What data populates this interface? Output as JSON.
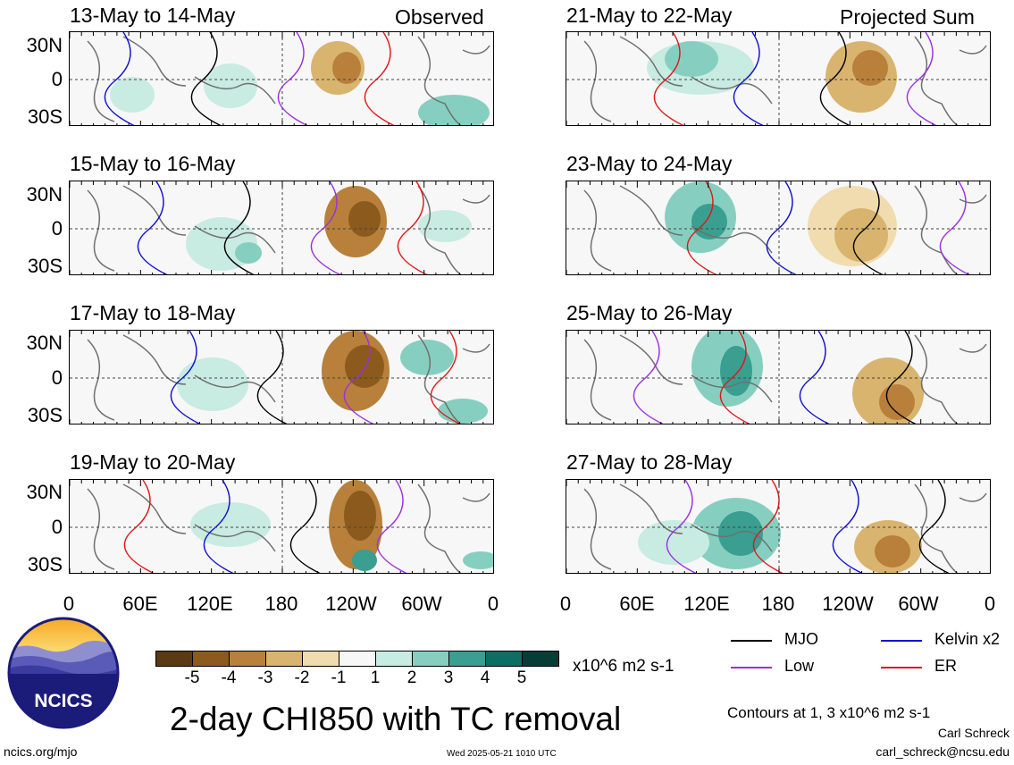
{
  "panels_left": [
    {
      "date": "13-May to 14-May",
      "tag": "Observed"
    },
    {
      "date": "15-May to 16-May",
      "tag": ""
    },
    {
      "date": "17-May to 18-May",
      "tag": ""
    },
    {
      "date": "19-May to 20-May",
      "tag": ""
    }
  ],
  "panels_right": [
    {
      "date": "21-May to 22-May",
      "tag": "Projected Sum"
    },
    {
      "date": "23-May to 24-May",
      "tag": ""
    },
    {
      "date": "25-May to 26-May",
      "tag": ""
    },
    {
      "date": "27-May to 28-May",
      "tag": ""
    }
  ],
  "lat_labels": [
    "30N",
    "0",
    "30S"
  ],
  "lon_labels": [
    "0",
    "60E",
    "120E",
    "180",
    "120W",
    "60W",
    "0"
  ],
  "colorbar": {
    "labels": [
      "-5",
      "-4",
      "-3",
      "-2",
      "-1",
      "1",
      "2",
      "3",
      "4",
      "5"
    ],
    "colors": [
      "#5a3a12",
      "#8b5a1c",
      "#b8803a",
      "#d9b46e",
      "#f0dcae",
      "#f7f7f7",
      "#c8ebe2",
      "#86cfc0",
      "#3a9e90",
      "#0d6e64",
      "#063d36"
    ],
    "unit": "x10^6 m2 s-1"
  },
  "legend": {
    "mjo": {
      "label": "MJO",
      "color": "#000000"
    },
    "kelvin": {
      "label": "Kelvin x2",
      "color": "#1010d0"
    },
    "low": {
      "label": "Low",
      "color": "#9b30e0"
    },
    "er": {
      "label": "ER",
      "color": "#e01818"
    }
  },
  "main_title": "2-day CHI850 with TC removal",
  "contours_note": "Contours at 1, 3 x10^6 m2 s-1",
  "author": "Carl Schreck",
  "email": "carl_schreck@ncsu.edu",
  "website": "ncics.org/mjo",
  "timestamp": "Wed 2025-05-21 1010 UTC",
  "logo_text": "NCICS"
}
